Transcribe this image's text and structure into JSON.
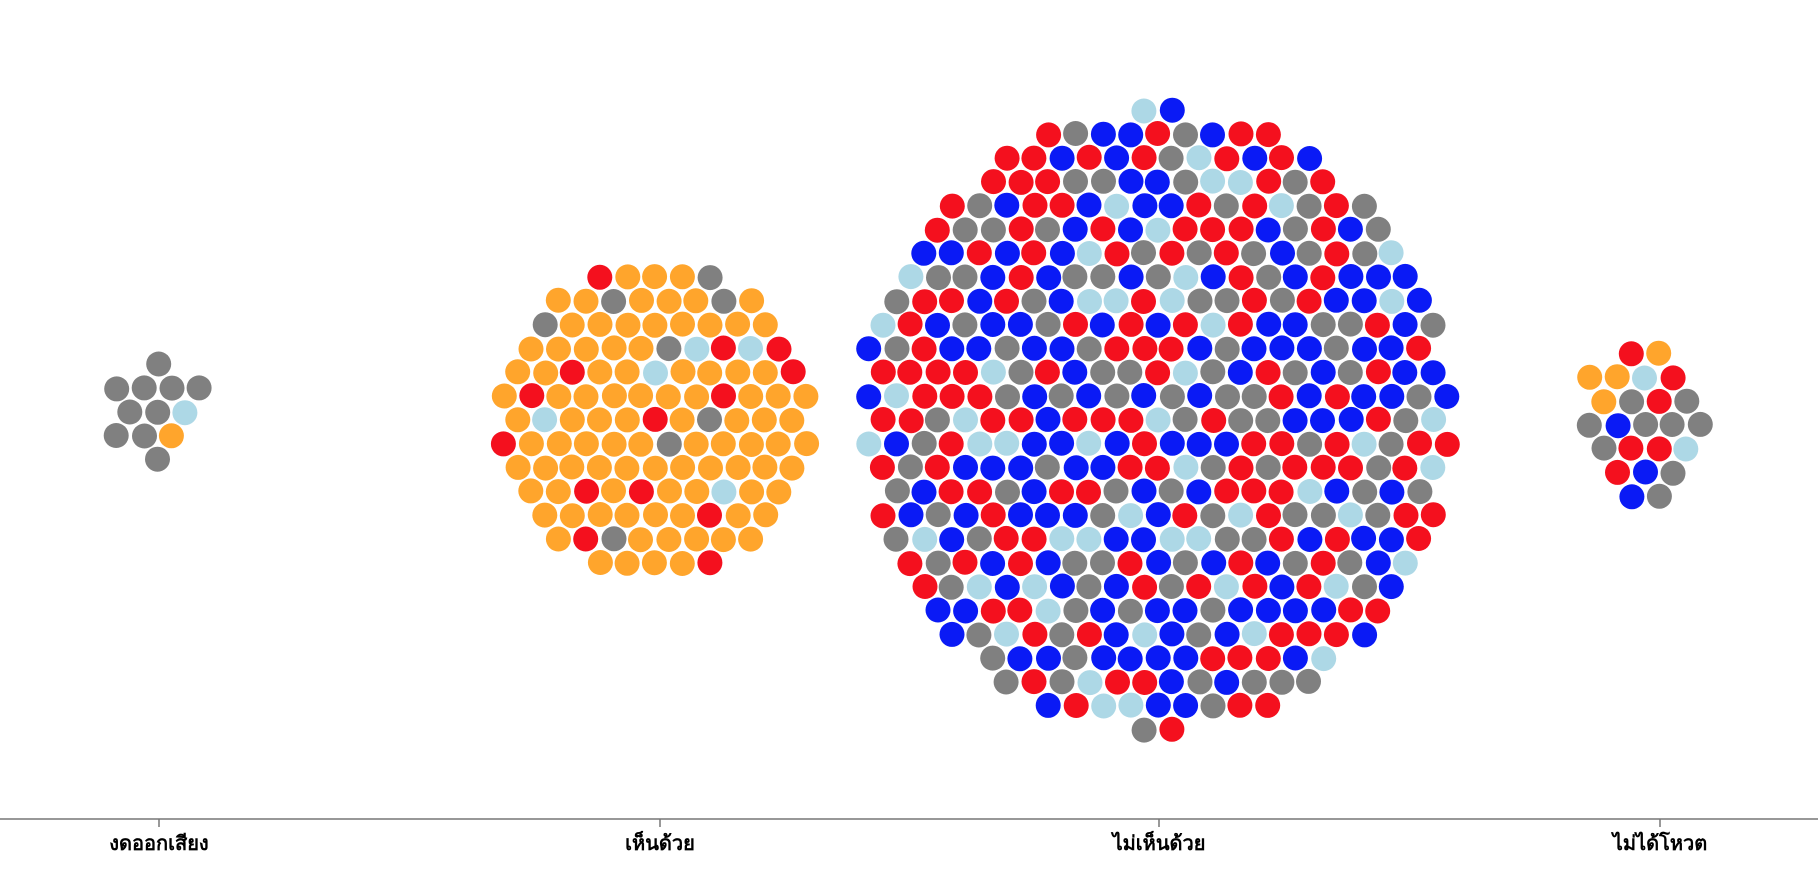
{
  "chart_data": {
    "type": "scatter",
    "subtype": "beeswarm",
    "x_axis": {
      "type": "categorical",
      "categories": [
        "งดออกเสียง",
        "เห็นด้วย",
        "ไม่เห็นด้วย",
        "ไม่ได้โหวต"
      ]
    },
    "grid": false,
    "legend": null,
    "colors": {
      "gray": "#808080",
      "orange": "#FFA52C",
      "red": "#F4101E",
      "blue": "#0A1AF5",
      "lightblue": "#ADD8E6"
    },
    "groups": [
      {
        "category": "งดออกเสียง",
        "total": 12,
        "counts": {
          "gray": 10,
          "orange": 1,
          "lightblue": 1
        }
      },
      {
        "category": "เห็นด้วย",
        "total": 121,
        "counts": {
          "orange": 94,
          "red": 14,
          "gray": 8,
          "lightblue": 5
        }
      },
      {
        "category": "ไม่เห็นด้วย",
        "total": 442,
        "counts": {
          "blue": 140,
          "red": 140,
          "gray": 110,
          "lightblue": 52
        }
      },
      {
        "category": "ไม่ได้โหวต",
        "total": 24,
        "counts": {
          "gray": 9,
          "red": 6,
          "orange": 4,
          "blue": 3,
          "lightblue": 2
        }
      }
    ]
  }
}
